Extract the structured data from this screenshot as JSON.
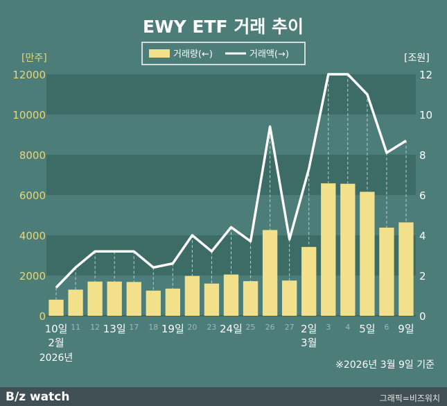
{
  "chart_data": {
    "type": "bar+line",
    "title": "EWY ETF 거래 추이",
    "legend": [
      {
        "label": "거래량(←)",
        "color": "#f3e08a"
      },
      {
        "label": "거래액(→)",
        "color": "#ffffff"
      }
    ],
    "left_axis_unit": "[만주]",
    "right_axis_unit": "[조원]",
    "ylim_left": [
      0,
      12000
    ],
    "ylim_right": [
      0,
      12
    ],
    "left_ticks": [
      "0",
      "2000",
      "4000",
      "6000",
      "8000",
      "10000",
      "12000"
    ],
    "right_ticks": [
      "0",
      "2",
      "4",
      "6",
      "8",
      "10",
      "12"
    ],
    "categories": [
      "10일",
      "11",
      "12",
      "13일",
      "17",
      "18",
      "19일",
      "20",
      "23",
      "24일",
      "25",
      "26",
      "27",
      "2일",
      "3",
      "4",
      "5일",
      "6",
      "9일"
    ],
    "major_categories": [
      "10일",
      "13일",
      "19일",
      "24일",
      "2일",
      "5일",
      "9일"
    ],
    "series": [
      {
        "name": "거래량",
        "axis": "left",
        "values": [
          800,
          1300,
          1700,
          1700,
          1680,
          1250,
          1350,
          1980,
          1600,
          2050,
          1720,
          4260,
          1750,
          3420,
          6580,
          6560,
          6160,
          4380,
          4640
        ]
      },
      {
        "name": "거래액",
        "axis": "right",
        "values": [
          1.4,
          2.4,
          3.2,
          3.2,
          3.2,
          2.4,
          2.6,
          4.0,
          3.2,
          4.4,
          3.7,
          9.4,
          3.8,
          7.3,
          12.0,
          12.0,
          11.0,
          8.1,
          8.7
        ]
      }
    ],
    "month_labels": [
      {
        "text": "2월",
        "at": "10일"
      },
      {
        "text": "3월",
        "at": "2일"
      }
    ],
    "year_label": {
      "text": "2026년",
      "at": "10일"
    },
    "note": "※2026년 3월 9일 기준"
  },
  "footer": {
    "brand": "B/z watch",
    "credit": "그래픽=비즈워치"
  }
}
